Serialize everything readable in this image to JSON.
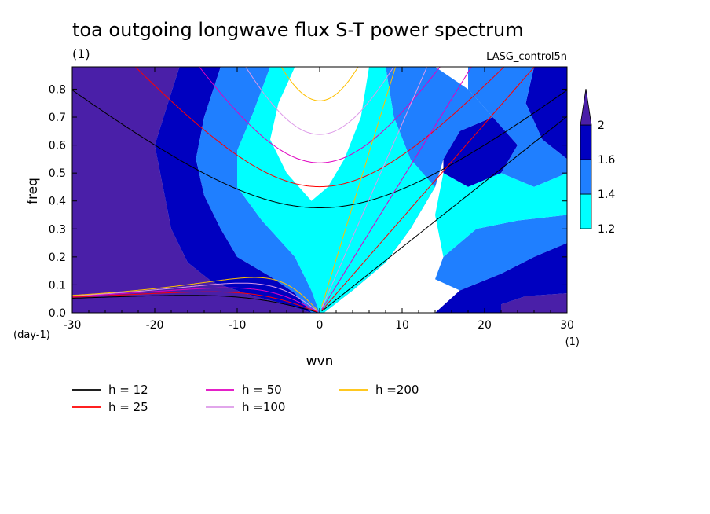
{
  "chart_data": {
    "type": "heatmap",
    "title": "toa outgoing longwave flux S-T power spectrum",
    "subtitle_units": "(1)",
    "run_label": "LASG_control5n",
    "xlabel": "wvn",
    "ylabel": "freq",
    "x_units": "(1)",
    "y_units": "(day-1)",
    "xlim": [
      -30,
      30
    ],
    "ylim": [
      0,
      0.88
    ],
    "x_ticks": [
      -30,
      -20,
      -10,
      0,
      10,
      20,
      30
    ],
    "y_ticks": [
      0.0,
      0.1,
      0.2,
      0.3,
      0.4,
      0.5,
      0.6,
      0.7,
      0.8
    ],
    "x_tick_labels": [
      "-30",
      "-20",
      "-10",
      "0",
      "10",
      "20",
      "30"
    ],
    "y_tick_labels": [
      "0.0",
      "0.1",
      "0.2",
      "0.3",
      "0.4",
      "0.5",
      "0.6",
      "0.7",
      "0.8"
    ],
    "colorbar": {
      "levels": [
        1.2,
        1.4,
        1.6,
        2
      ],
      "labels": [
        "1.2",
        "1.4",
        "1.6",
        "2"
      ],
      "colors": [
        "#00ffff",
        "#1f7fff",
        "#0000c0",
        "#4a1fa8"
      ]
    },
    "regions": [
      {
        "level": 4,
        "polygon": [
          [
            -30,
            0
          ],
          [
            -30,
            0.88
          ],
          [
            -17,
            0.88
          ],
          [
            -20,
            0.6
          ],
          [
            -19,
            0.45
          ],
          [
            -18,
            0.3
          ],
          [
            -16,
            0.18
          ],
          [
            -13,
            0.11
          ],
          [
            -8,
            0.06
          ],
          [
            -4,
            0.03
          ],
          [
            -1,
            0
          ],
          [
            -30,
            0
          ]
        ]
      },
      {
        "level": 4,
        "polygon": [
          [
            0.5,
            0
          ],
          [
            4,
            0.08
          ],
          [
            8,
            0.18
          ],
          [
            11,
            0.3
          ],
          [
            14,
            0.45
          ],
          [
            15,
            0.55
          ],
          [
            12,
            0.5
          ],
          [
            9,
            0.35
          ],
          [
            6,
            0.22
          ],
          [
            3,
            0.1
          ],
          [
            1,
            0.02
          ]
        ]
      },
      {
        "level": 4,
        "polygon": [
          [
            22,
            0
          ],
          [
            30,
            0
          ],
          [
            30,
            0.07
          ],
          [
            25,
            0.06
          ],
          [
            22,
            0.03
          ]
        ]
      },
      {
        "level": 3,
        "polygon": [
          [
            -17,
            0.88
          ],
          [
            -12,
            0.88
          ],
          [
            -14,
            0.7
          ],
          [
            -15,
            0.55
          ],
          [
            -14,
            0.42
          ],
          [
            -12,
            0.3
          ],
          [
            -10,
            0.2
          ],
          [
            -6,
            0.13
          ],
          [
            -3,
            0.07
          ],
          [
            -1,
            0
          ],
          [
            -4,
            0.03
          ],
          [
            -8,
            0.06
          ],
          [
            -13,
            0.11
          ],
          [
            -16,
            0.18
          ],
          [
            -18,
            0.3
          ],
          [
            -19,
            0.45
          ],
          [
            -20,
            0.6
          ]
        ]
      },
      {
        "level": 3,
        "polygon": [
          [
            15,
            0.55
          ],
          [
            17,
            0.65
          ],
          [
            21,
            0.7
          ],
          [
            24,
            0.6
          ],
          [
            22,
            0.5
          ],
          [
            18,
            0.45
          ],
          [
            15,
            0.5
          ]
        ]
      },
      {
        "level": 3,
        "polygon": [
          [
            14,
            0
          ],
          [
            22,
            0
          ],
          [
            22,
            0.03
          ],
          [
            25,
            0.06
          ],
          [
            30,
            0.07
          ],
          [
            30,
            0.25
          ],
          [
            26,
            0.2
          ],
          [
            22,
            0.14
          ],
          [
            17,
            0.08
          ]
        ]
      },
      {
        "level": 3,
        "polygon": [
          [
            26,
            0.88
          ],
          [
            30,
            0.88
          ],
          [
            30,
            0.55
          ],
          [
            27,
            0.62
          ],
          [
            25,
            0.75
          ]
        ]
      },
      {
        "level": 2,
        "polygon": [
          [
            -12,
            0.88
          ],
          [
            -6,
            0.88
          ],
          [
            -8,
            0.72
          ],
          [
            -10,
            0.58
          ],
          [
            -10,
            0.45
          ],
          [
            -7,
            0.33
          ],
          [
            -3,
            0.2
          ],
          [
            -1,
            0.08
          ],
          [
            0,
            0
          ],
          [
            -1,
            0
          ],
          [
            -3,
            0.07
          ],
          [
            -6,
            0.13
          ],
          [
            -10,
            0.2
          ],
          [
            -12,
            0.3
          ],
          [
            -14,
            0.42
          ],
          [
            -15,
            0.55
          ],
          [
            -14,
            0.7
          ]
        ]
      },
      {
        "level": 2,
        "polygon": [
          [
            8,
            0.88
          ],
          [
            14,
            0.88
          ],
          [
            18,
            0.8
          ],
          [
            21,
            0.7
          ],
          [
            17,
            0.65
          ],
          [
            15,
            0.55
          ],
          [
            14,
            0.45
          ],
          [
            11,
            0.55
          ],
          [
            9,
            0.7
          ]
        ]
      },
      {
        "level": 2,
        "polygon": [
          [
            21,
            0.7
          ],
          [
            24,
            0.6
          ],
          [
            22,
            0.5
          ],
          [
            26,
            0.45
          ],
          [
            30,
            0.5
          ],
          [
            30,
            0.55
          ],
          [
            27,
            0.62
          ],
          [
            25,
            0.75
          ],
          [
            26,
            0.88
          ],
          [
            18,
            0.88
          ],
          [
            18,
            0.8
          ]
        ]
      },
      {
        "level": 2,
        "polygon": [
          [
            14,
            0.12
          ],
          [
            17,
            0.08
          ],
          [
            22,
            0.14
          ],
          [
            26,
            0.2
          ],
          [
            30,
            0.25
          ],
          [
            30,
            0.35
          ],
          [
            24,
            0.33
          ],
          [
            19,
            0.3
          ],
          [
            15,
            0.2
          ]
        ]
      },
      {
        "level": 1,
        "polygon": [
          [
            -6,
            0.88
          ],
          [
            -3,
            0.88
          ],
          [
            -5,
            0.75
          ],
          [
            -6,
            0.62
          ],
          [
            -4,
            0.5
          ],
          [
            -1,
            0.4
          ],
          [
            1,
            0.45
          ],
          [
            3,
            0.55
          ],
          [
            5,
            0.7
          ],
          [
            6,
            0.88
          ],
          [
            8,
            0.88
          ],
          [
            9,
            0.7
          ],
          [
            11,
            0.55
          ],
          [
            14,
            0.45
          ],
          [
            11,
            0.3
          ],
          [
            8,
            0.18
          ],
          [
            4,
            0.08
          ],
          [
            0.5,
            0
          ],
          [
            0,
            0
          ],
          [
            -1,
            0.08
          ],
          [
            -3,
            0.2
          ],
          [
            -7,
            0.33
          ],
          [
            -10,
            0.45
          ],
          [
            -10,
            0.58
          ],
          [
            -8,
            0.72
          ]
        ]
      },
      {
        "level": 1,
        "polygon": [
          [
            15,
            0.2
          ],
          [
            19,
            0.3
          ],
          [
            24,
            0.33
          ],
          [
            30,
            0.35
          ],
          [
            30,
            0.5
          ],
          [
            26,
            0.45
          ],
          [
            22,
            0.5
          ],
          [
            18,
            0.45
          ],
          [
            15,
            0.5
          ],
          [
            14,
            0.35
          ]
        ]
      }
    ],
    "dispersion_curves": [
      {
        "name": "h = 12",
        "color": "#000000"
      },
      {
        "name": "h = 25",
        "color": "#ff0000"
      },
      {
        "name": "h = 50",
        "color": "#e000c0"
      },
      {
        "name": "h =100",
        "color": "#dd99e8"
      },
      {
        "name": "h =200",
        "color": "#ffc000"
      }
    ],
    "dispersion_families": [
      "kelvin",
      "er",
      "ig1"
    ],
    "equivalent_depths_m": [
      12,
      25,
      50,
      100,
      200
    ],
    "grid": false,
    "legend_position": "bottom-left"
  }
}
